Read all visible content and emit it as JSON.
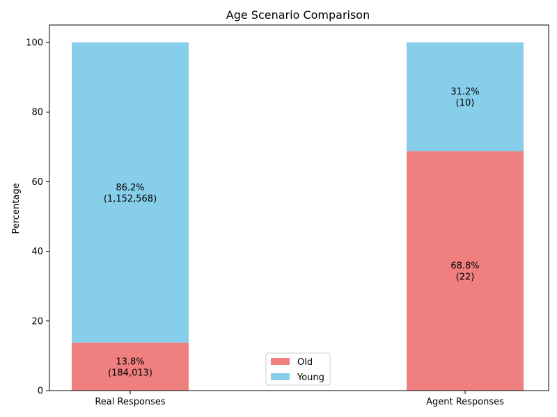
{
  "chart_data": {
    "type": "bar",
    "stacked": true,
    "title": "Age Scenario Comparison",
    "xlabel": "",
    "ylabel": "Percentage",
    "ylim": [
      0,
      105
    ],
    "yticks": [
      0,
      20,
      40,
      60,
      80,
      100
    ],
    "categories": [
      "Real Responses",
      "Agent Responses"
    ],
    "series": [
      {
        "name": "Old",
        "color": "#f08080",
        "values": [
          13.8,
          68.8
        ],
        "labels": [
          [
            "13.8%",
            "(184,013)"
          ],
          [
            "68.8%",
            "(22)"
          ]
        ]
      },
      {
        "name": "Young",
        "color": "#87ceeb",
        "values": [
          86.2,
          31.2
        ],
        "labels": [
          [
            "86.2%",
            "(1,152,568)"
          ],
          [
            "31.2%",
            "(10)"
          ]
        ]
      }
    ],
    "legend": {
      "placement": "lower-center"
    },
    "grid": false
  }
}
